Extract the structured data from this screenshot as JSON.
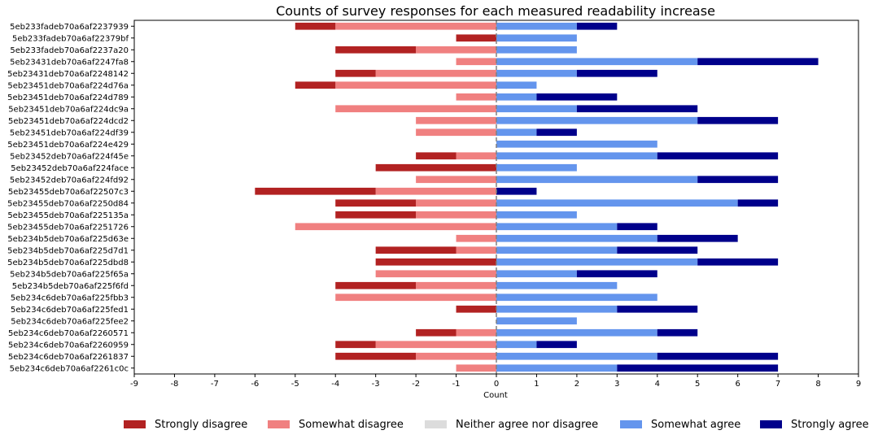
{
  "chart_data": {
    "type": "bar",
    "orientation": "horizontal-diverging",
    "title": "Counts of survey responses for each measured readability increase",
    "xlabel": "Count",
    "ylabel": "",
    "xlim": [
      -9,
      9
    ],
    "xticks": [
      -9,
      -8,
      -7,
      -6,
      -5,
      -4,
      -3,
      -2,
      -1,
      0,
      1,
      2,
      3,
      4,
      5,
      6,
      7,
      8,
      9
    ],
    "grid": false,
    "legend_position": "bottom",
    "categories": [
      "5eb233fadeb70a6af2237939",
      "5eb233fadeb70a6af22379bf",
      "5eb233fadeb70a6af2237a20",
      "5eb23431deb70a6af2247fa8",
      "5eb23431deb70a6af2248142",
      "5eb23451deb70a6af224d76a",
      "5eb23451deb70a6af224d789",
      "5eb23451deb70a6af224dc9a",
      "5eb23451deb70a6af224dcd2",
      "5eb23451deb70a6af224df39",
      "5eb23451deb70a6af224e429",
      "5eb23452deb70a6af224f45e",
      "5eb23452deb70a6af224face",
      "5eb23452deb70a6af224fd92",
      "5eb23455deb70a6af22507c3",
      "5eb23455deb70a6af2250d84",
      "5eb23455deb70a6af225135a",
      "5eb23455deb70a6af2251726",
      "5eb234b5deb70a6af225d63e",
      "5eb234b5deb70a6af225d7d1",
      "5eb234b5deb70a6af225dbd8",
      "5eb234b5deb70a6af225f65a",
      "5eb234b5deb70a6af225f6fd",
      "5eb234c6deb70a6af225fbb3",
      "5eb234c6deb70a6af225fed1",
      "5eb234c6deb70a6af225fee2",
      "5eb234c6deb70a6af2260571",
      "5eb234c6deb70a6af2260959",
      "5eb234c6deb70a6af2261837",
      "5eb234c6deb70a6af2261c0c"
    ],
    "series": [
      {
        "name": "Strongly disagree",
        "color": "#b22222",
        "values": [
          1,
          1,
          2,
          0,
          1,
          1,
          0,
          0,
          0,
          0,
          0,
          1,
          3,
          0,
          3,
          2,
          2,
          0,
          0,
          2,
          3,
          0,
          2,
          0,
          1,
          0,
          1,
          1,
          2,
          0
        ]
      },
      {
        "name": "Somewhat disagree",
        "color": "#f08080",
        "values": [
          4,
          0,
          2,
          1,
          3,
          4,
          1,
          4,
          2,
          2,
          0,
          1,
          0,
          2,
          3,
          2,
          2,
          5,
          1,
          1,
          0,
          3,
          2,
          4,
          0,
          0,
          1,
          3,
          2,
          1
        ]
      },
      {
        "name": "Neither agree nor disagree",
        "color": "#dcdcdc",
        "values": [
          0,
          0,
          0,
          0,
          0,
          0,
          0,
          0,
          0,
          0,
          0,
          0,
          0,
          0,
          0,
          0,
          0,
          0,
          0,
          0,
          0,
          0,
          0,
          0,
          0,
          0,
          0,
          0,
          0,
          0
        ]
      },
      {
        "name": "Somewhat agree",
        "color": "#6495ed",
        "values": [
          2,
          2,
          2,
          5,
          2,
          1,
          1,
          2,
          5,
          1,
          4,
          4,
          2,
          5,
          0,
          6,
          2,
          3,
          4,
          3,
          5,
          2,
          3,
          4,
          3,
          2,
          4,
          1,
          4,
          3
        ]
      },
      {
        "name": "Strongly agree",
        "color": "#00008b",
        "values": [
          1,
          0,
          0,
          3,
          2,
          0,
          2,
          3,
          2,
          1,
          0,
          3,
          0,
          2,
          1,
          1,
          0,
          1,
          2,
          2,
          2,
          2,
          0,
          0,
          2,
          0,
          1,
          1,
          3,
          4
        ]
      }
    ]
  }
}
